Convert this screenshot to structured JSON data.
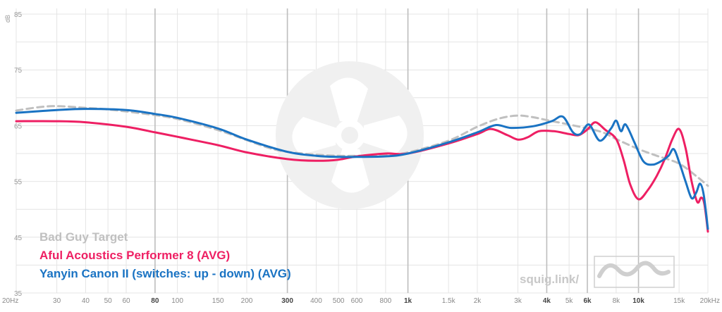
{
  "chart_data": {
    "type": "line",
    "xscale": "log",
    "xlim": [
      20,
      20000
    ],
    "ylim": [
      35,
      85
    ],
    "ylabel": "dB",
    "grid": true,
    "yticks": [
      35,
      45,
      55,
      65,
      75,
      85
    ],
    "xticks": [
      {
        "value": 20,
        "label": "20Hz",
        "major": false
      },
      {
        "value": 30,
        "label": "30",
        "major": false
      },
      {
        "value": 40,
        "label": "40",
        "major": false
      },
      {
        "value": 50,
        "label": "50",
        "major": false
      },
      {
        "value": 60,
        "label": "60",
        "major": false
      },
      {
        "value": 80,
        "label": "80",
        "major": true
      },
      {
        "value": 100,
        "label": "100",
        "major": false
      },
      {
        "value": 150,
        "label": "150",
        "major": false
      },
      {
        "value": 200,
        "label": "200",
        "major": false
      },
      {
        "value": 300,
        "label": "300",
        "major": true
      },
      {
        "value": 400,
        "label": "400",
        "major": false
      },
      {
        "value": 500,
        "label": "500",
        "major": false
      },
      {
        "value": 600,
        "label": "600",
        "major": false
      },
      {
        "value": 800,
        "label": "800",
        "major": false
      },
      {
        "value": 1000,
        "label": "1k",
        "major": true
      },
      {
        "value": 1500,
        "label": "1.5k",
        "major": false
      },
      {
        "value": 2000,
        "label": "2k",
        "major": false
      },
      {
        "value": 3000,
        "label": "3k",
        "major": false
      },
      {
        "value": 4000,
        "label": "4k",
        "major": true
      },
      {
        "value": 5000,
        "label": "5k",
        "major": false
      },
      {
        "value": 6000,
        "label": "6k",
        "major": true
      },
      {
        "value": 8000,
        "label": "8k",
        "major": false
      },
      {
        "value": 10000,
        "label": "10k",
        "major": true
      },
      {
        "value": 15000,
        "label": "15k",
        "major": false
      },
      {
        "value": 20000,
        "label": "20kHz",
        "major": false
      }
    ],
    "series": [
      {
        "name": "Bad Guy Target",
        "color": "#c0c0c0",
        "dashed": true,
        "points": [
          [
            20,
            67.7
          ],
          [
            25,
            68.3
          ],
          [
            30,
            68.5
          ],
          [
            40,
            68.2
          ],
          [
            50,
            67.9
          ],
          [
            70,
            67.2
          ],
          [
            100,
            66.2
          ],
          [
            150,
            64.2
          ],
          [
            200,
            62.4
          ],
          [
            250,
            61.0
          ],
          [
            300,
            60.3
          ],
          [
            400,
            59.8
          ],
          [
            500,
            59.6
          ],
          [
            600,
            59.6
          ],
          [
            800,
            59.8
          ],
          [
            1000,
            60.2
          ],
          [
            1500,
            62.3
          ],
          [
            2000,
            64.8
          ],
          [
            2500,
            66.3
          ],
          [
            3000,
            66.8
          ],
          [
            3500,
            66.5
          ],
          [
            4000,
            66.0
          ],
          [
            5000,
            65.2
          ],
          [
            6000,
            64.5
          ],
          [
            7000,
            63.8
          ],
          [
            8000,
            62.6
          ],
          [
            10000,
            60.8
          ],
          [
            12000,
            59.6
          ],
          [
            15000,
            58.2
          ],
          [
            18000,
            55.8
          ],
          [
            20000,
            54.2
          ]
        ]
      },
      {
        "name": "Aful Acoustics Performer 8 (AVG)",
        "color": "#ee1f63",
        "dashed": false,
        "points": [
          [
            20,
            65.8
          ],
          [
            30,
            65.8
          ],
          [
            40,
            65.6
          ],
          [
            60,
            64.8
          ],
          [
            80,
            63.8
          ],
          [
            100,
            63.0
          ],
          [
            150,
            61.5
          ],
          [
            200,
            60.2
          ],
          [
            300,
            59.0
          ],
          [
            400,
            58.7
          ],
          [
            500,
            58.9
          ],
          [
            600,
            59.5
          ],
          [
            800,
            60.0
          ],
          [
            1000,
            60.0
          ],
          [
            1500,
            61.8
          ],
          [
            2000,
            63.5
          ],
          [
            2300,
            64.4
          ],
          [
            2700,
            63.3
          ],
          [
            3000,
            62.5
          ],
          [
            3300,
            62.9
          ],
          [
            3700,
            64.0
          ],
          [
            4300,
            64.0
          ],
          [
            5000,
            63.5
          ],
          [
            5500,
            63.3
          ],
          [
            6000,
            64.3
          ],
          [
            6500,
            65.6
          ],
          [
            7200,
            64.2
          ],
          [
            8000,
            62.6
          ],
          [
            8600,
            59.0
          ],
          [
            9200,
            54.5
          ],
          [
            10000,
            51.8
          ],
          [
            11000,
            53.5
          ],
          [
            12000,
            56.0
          ],
          [
            13000,
            59.0
          ],
          [
            14000,
            62.5
          ],
          [
            15000,
            64.4
          ],
          [
            16000,
            61.0
          ],
          [
            17000,
            55.0
          ],
          [
            18000,
            51.3
          ],
          [
            18700,
            52.1
          ],
          [
            19300,
            51.0
          ],
          [
            20000,
            46.0
          ]
        ]
      },
      {
        "name": "Yanyin Canon II (switches: up - down) (AVG)",
        "color": "#1a73c3",
        "dashed": false,
        "points": [
          [
            20,
            67.3
          ],
          [
            30,
            67.8
          ],
          [
            40,
            68.0
          ],
          [
            60,
            67.8
          ],
          [
            80,
            67.1
          ],
          [
            100,
            66.4
          ],
          [
            150,
            64.5
          ],
          [
            200,
            62.5
          ],
          [
            300,
            60.3
          ],
          [
            400,
            59.6
          ],
          [
            500,
            59.4
          ],
          [
            600,
            59.4
          ],
          [
            800,
            59.5
          ],
          [
            1000,
            60.0
          ],
          [
            1500,
            62.0
          ],
          [
            2000,
            63.8
          ],
          [
            2400,
            65.1
          ],
          [
            2800,
            64.6
          ],
          [
            3500,
            64.9
          ],
          [
            4200,
            65.8
          ],
          [
            4700,
            66.6
          ],
          [
            5200,
            63.8
          ],
          [
            5600,
            63.5
          ],
          [
            6100,
            65.2
          ],
          [
            6800,
            62.3
          ],
          [
            7600,
            64.5
          ],
          [
            8000,
            65.9
          ],
          [
            8400,
            64.0
          ],
          [
            8800,
            65.2
          ],
          [
            9600,
            62.0
          ],
          [
            10500,
            58.6
          ],
          [
            11500,
            58.0
          ],
          [
            12500,
            58.6
          ],
          [
            13500,
            59.6
          ],
          [
            14200,
            60.8
          ],
          [
            15000,
            58.5
          ],
          [
            16000,
            55.0
          ],
          [
            17000,
            52.0
          ],
          [
            17800,
            53.0
          ],
          [
            18500,
            54.6
          ],
          [
            19200,
            52.5
          ],
          [
            20000,
            46.5
          ]
        ]
      }
    ]
  },
  "watermark": {
    "text": "squig.link/"
  }
}
